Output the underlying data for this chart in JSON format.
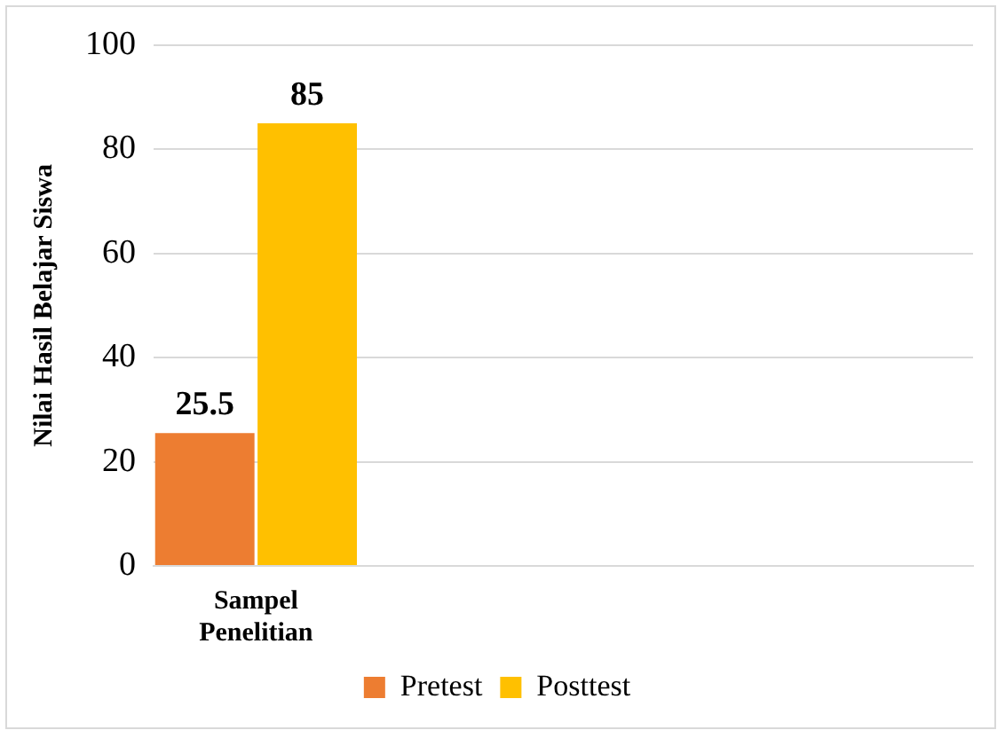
{
  "chart_data": {
    "type": "bar",
    "ylabel": "Nilai Hasil Belajar Siswa",
    "categories": [
      "Sampel Penelitian",
      null,
      null,
      null
    ],
    "series": [
      {
        "name": "Pretest",
        "color": "#ed7d31",
        "values": [
          25.5,
          null,
          null,
          null
        ]
      },
      {
        "name": "Posttest",
        "color": "#ffc000",
        "values": [
          85,
          null,
          null,
          null
        ]
      }
    ],
    "ylim": [
      0,
      100
    ],
    "yticks": [
      0,
      20,
      40,
      60,
      80,
      100
    ],
    "grid": "y",
    "legend": "bottom",
    "data_labels": true
  }
}
